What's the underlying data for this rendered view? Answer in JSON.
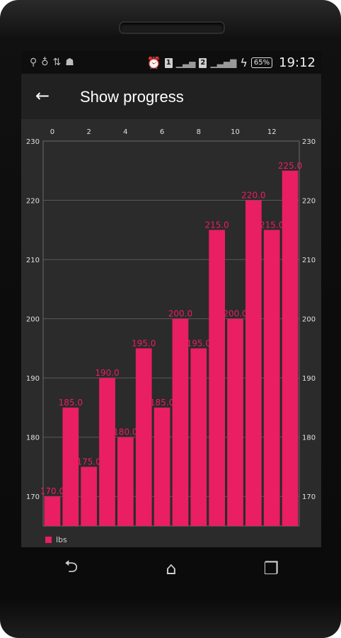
{
  "status_bar": {
    "left_icons": [
      "usb-icon",
      "bulb-icon",
      "data-icon",
      "android-icon"
    ],
    "sim1": "1",
    "sim2": "2",
    "battery": "65%",
    "time": "19:12"
  },
  "app_bar": {
    "title": "Show progress"
  },
  "colors": {
    "bar": "#e91e63",
    "grid": "#5a5a5a",
    "text": "#e0e0e0"
  },
  "chart_data": {
    "type": "bar",
    "x": [
      0,
      1,
      2,
      3,
      4,
      5,
      6,
      7,
      8,
      9,
      10,
      11,
      12,
      13
    ],
    "x_ticks": [
      0,
      2,
      4,
      6,
      8,
      10,
      12
    ],
    "series": [
      {
        "name": "lbs",
        "values": [
          170.0,
          185.0,
          175.0,
          190.0,
          180.0,
          195.0,
          185.0,
          200.0,
          195.0,
          215.0,
          200.0,
          220.0,
          215.0,
          225.0
        ]
      }
    ],
    "value_labels": [
      "170.0",
      "185.0",
      "175.0",
      "190.0",
      "180.0",
      "195.0",
      "185.0",
      "200.0",
      "195.0",
      "215.0",
      "200.0",
      "220.0",
      "215.0",
      "225.0"
    ],
    "y_ticks": [
      170,
      180,
      190,
      200,
      210,
      220,
      230
    ],
    "ylim": [
      165,
      230
    ],
    "xlim": [
      -0.5,
      13.5
    ],
    "grid": true,
    "legend": "bottom-left"
  }
}
